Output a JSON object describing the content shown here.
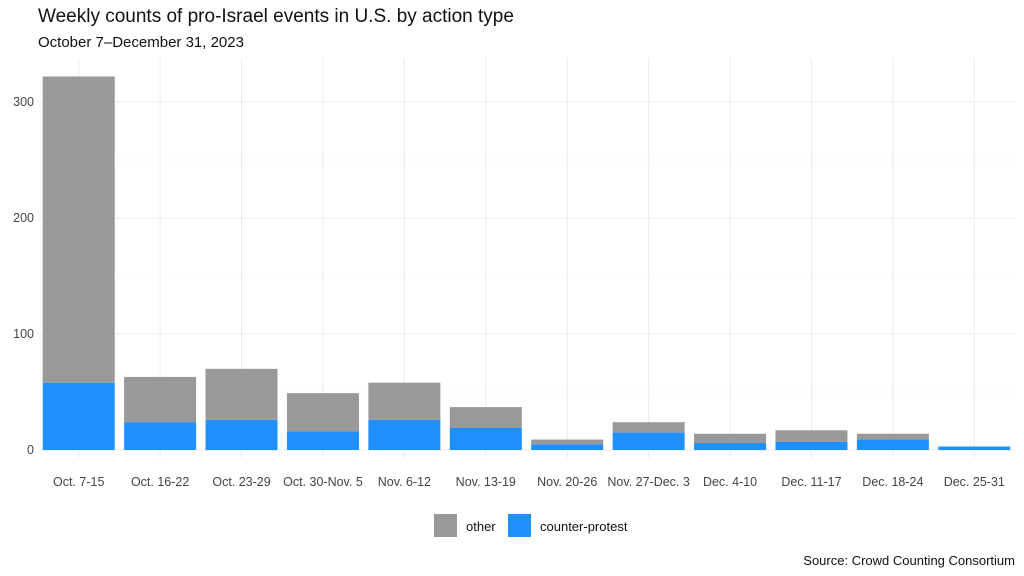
{
  "chart_data": {
    "type": "bar",
    "stacked": true,
    "title": "Weekly counts of pro-Israel events in U.S. by action type",
    "subtitle": "October 7–December 31, 2023",
    "caption": "Source: Crowd Counting Consortium",
    "xlabel": "",
    "ylabel": "",
    "ylim": [
      0,
      335
    ],
    "yticks": [
      0,
      100,
      200,
      300
    ],
    "grid": true,
    "legend_position": "bottom",
    "categories": [
      "Oct. 7-15",
      "Oct. 16-22",
      "Oct. 23-29",
      "Oct. 30-Nov. 5",
      "Nov. 6-12",
      "Nov. 13-19",
      "Nov. 20-26",
      "Nov. 27-Dec. 3",
      "Dec. 4-10",
      "Dec. 11-17",
      "Dec. 18-24",
      "Dec. 25-31"
    ],
    "series": [
      {
        "name": "counter-protest",
        "color": "#1e90ff",
        "values": [
          58,
          24,
          26,
          16,
          26,
          19,
          5,
          15,
          6,
          7,
          9,
          3
        ]
      },
      {
        "name": "other",
        "color": "#999999",
        "values": [
          264,
          39,
          44,
          33,
          32,
          18,
          4,
          9,
          8,
          10,
          5,
          0
        ]
      }
    ],
    "legend_order": [
      "other",
      "counter-protest"
    ]
  }
}
